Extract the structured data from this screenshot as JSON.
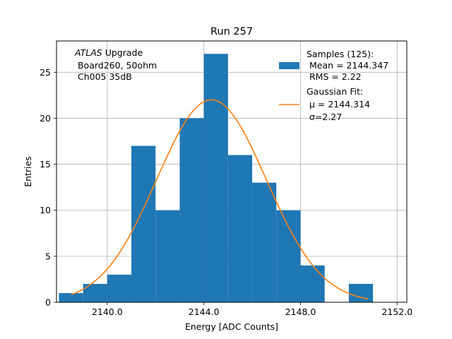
{
  "chart_data": {
    "type": "bar",
    "title": "Run 257",
    "xlabel": "Energy [ADC Counts]",
    "ylabel": "Entries",
    "xlim": [
      2137.9,
      2152.4
    ],
    "ylim": [
      0,
      28.4
    ],
    "grid": true,
    "xticks": [
      2140.0,
      2144.0,
      2148.0,
      2152.0
    ],
    "xtick_labels": [
      "2140.0",
      "2144.0",
      "2148.0",
      "2152.0"
    ],
    "yticks": [
      0,
      5,
      10,
      15,
      20,
      25
    ],
    "ytick_labels": [
      "0",
      "5",
      "10",
      "15",
      "20",
      "25"
    ],
    "annotation": {
      "italic_part": "ATLAS",
      "line1_rest": " Upgrade",
      "line2": " Board260, 50ohm",
      "line3": " Ch005 35dB"
    },
    "series": [
      {
        "type": "histogram",
        "color": "#1f77b4",
        "bin_edges": [
          2138.0,
          2139.0,
          2140.0,
          2141.0,
          2142.0,
          2143.0,
          2144.0,
          2145.0,
          2146.0,
          2147.0,
          2148.0,
          2149.0,
          2150.0,
          2151.0
        ],
        "counts": [
          1,
          2,
          3,
          17,
          10,
          20,
          27,
          16,
          13,
          10,
          4,
          0,
          2
        ],
        "legend_lines": [
          "Samples (125):",
          " Mean = 2144.347",
          " RMS = 2.22"
        ]
      },
      {
        "type": "line",
        "color": "#ff7f0e",
        "model": "gaussian",
        "amplitude": 22.0,
        "mu": 2144.314,
        "sigma": 2.27,
        "x_range": [
          2138.5,
          2150.8
        ],
        "legend_lines": [
          "Gaussian Fit:",
          " μ = 2144.314",
          " σ=2.27"
        ]
      }
    ],
    "legend_position": "top-right"
  }
}
